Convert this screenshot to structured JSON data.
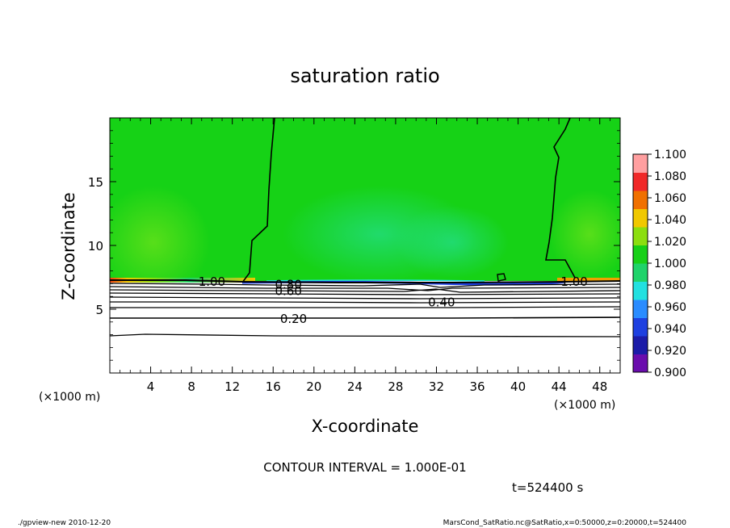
{
  "chart_data": {
    "type": "heatmap",
    "title": "saturation ratio",
    "xlabel": "X-coordinate",
    "ylabel": "Z-coordinate",
    "xunit_left": "(×1000 m)",
    "xunit_right": "(×1000 m)",
    "xlim": [
      0,
      50
    ],
    "ylim": [
      0,
      20
    ],
    "xticks": [
      "4",
      "8",
      "12",
      "16",
      "20",
      "24",
      "28",
      "32",
      "36",
      "40",
      "44",
      "48"
    ],
    "xtick_values": [
      4,
      8,
      12,
      16,
      20,
      24,
      28,
      32,
      36,
      40,
      44,
      48
    ],
    "yticks": [
      "5",
      "10",
      "15"
    ],
    "ytick_values": [
      5,
      10,
      15
    ],
    "colorbar": {
      "labels": [
        "0.900",
        "0.920",
        "0.940",
        "0.960",
        "0.980",
        "1.000",
        "1.020",
        "1.040",
        "1.060",
        "1.080",
        "1.100"
      ],
      "values": [
        0.9,
        0.92,
        0.94,
        0.96,
        0.98,
        1.0,
        1.02,
        1.04,
        1.06,
        1.08,
        1.1
      ],
      "colors": [
        "#6a0dad",
        "#1c1ca8",
        "#1e40e0",
        "#2a8cff",
        "#22e0e0",
        "#1fd36a",
        "#18d018",
        "#8cde10",
        "#f0c800",
        "#f07000",
        "#f02828",
        "#ff9fa0"
      ]
    },
    "contour_labels": [
      {
        "text": "1.00",
        "x": 10,
        "z": 7.2
      },
      {
        "text": "1.00",
        "x": 45.5,
        "z": 7.2
      },
      {
        "text": "0.80",
        "x": 17.5,
        "z": 7.0
      },
      {
        "text": "0.60",
        "x": 17.5,
        "z": 6.5
      },
      {
        "text": "0.40",
        "x": 32.5,
        "z": 5.6
      },
      {
        "text": "0.20",
        "x": 18,
        "z": 4.3
      }
    ],
    "supersaturated_layer_z": 7.2,
    "contour_interval_text": "CONTOUR INTERVAL = 1.000E-01",
    "time_text": "t=524400 s",
    "footer_left": "./gpview-new  2010-12-20",
    "footer_right": "MarsCond_SatRatio.nc@SatRatio,x=0:50000,z=0:20000,t=524400",
    "grid": false
  }
}
